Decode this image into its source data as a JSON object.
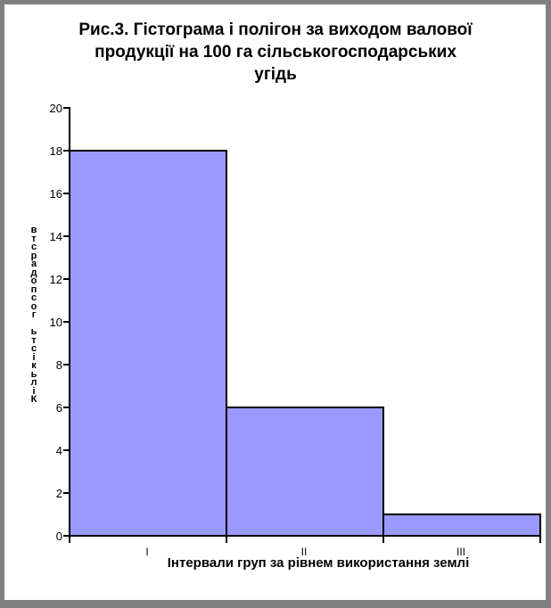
{
  "window": {
    "background": "#ffffff",
    "frame_color": "#808080"
  },
  "chart_data": {
    "type": "bar",
    "title": "Рис.3. Гістограма і полігон за виходом валової продукції на 100 га сільськогосподарських угідь",
    "title_lines": [
      "Рис.3. Гістограма і полігон за виходом валової",
      "продукції на 100 га сільськогосподарських",
      "угідь"
    ],
    "xlabel": "Інтервали груп за рівнем використання землі",
    "ylabel": "Кількість господарств",
    "ylabel_stacked": "в\nт\nс\nр\nа\nд\nо\nп\nс\nо\nг\n\nь\nт\nс\nі\nк\nь\nл\nі\nК",
    "categories": [
      "І",
      "ІІ",
      "ІІІ"
    ],
    "values": [
      18,
      6,
      1
    ],
    "yticks": [
      0,
      2,
      4,
      6,
      8,
      10,
      12,
      14,
      16,
      18,
      20
    ],
    "ylim": [
      0,
      20
    ],
    "bar_fill": "#9999ff",
    "bar_border": "#000000",
    "axis_color": "#000000",
    "grid": false,
    "legend": false
  }
}
